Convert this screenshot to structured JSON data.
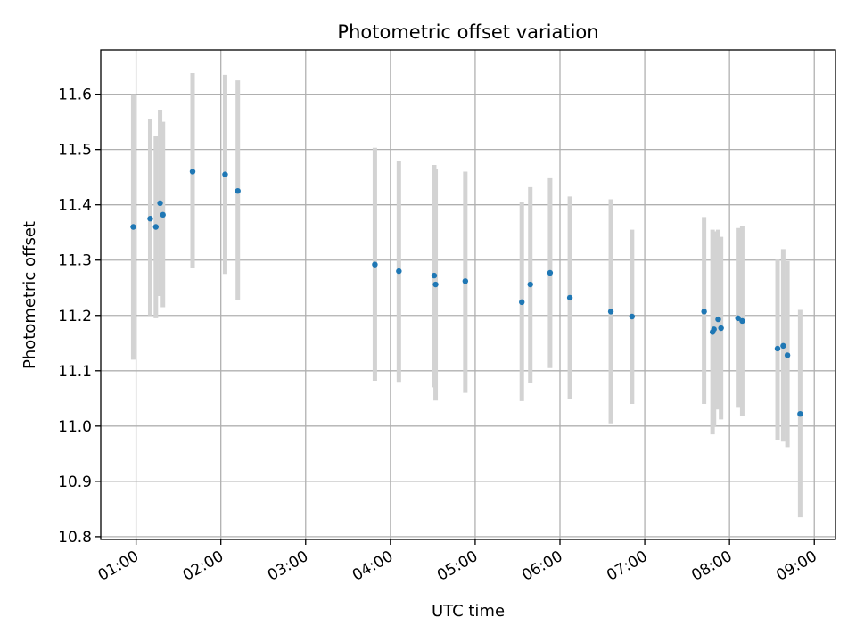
{
  "chart_data": {
    "type": "scatter",
    "title": "Photometric offset variation",
    "xlabel": "UTC time",
    "ylabel": "Photometric offset",
    "xlim": [
      "00:35",
      "09:15"
    ],
    "ylim": [
      10.795,
      11.68
    ],
    "grid": true,
    "x_ticks": [
      "01:00",
      "02:00",
      "03:00",
      "04:00",
      "05:00",
      "06:00",
      "07:00",
      "08:00",
      "09:00"
    ],
    "y_ticks": [
      "10.8",
      "10.9",
      "11.0",
      "11.1",
      "11.2",
      "11.3",
      "11.4",
      "11.5",
      "11.6"
    ],
    "point_color": "#1f77b4",
    "errorbar_color": "#d3d3d3",
    "points": [
      {
        "x": "00:58",
        "y": 11.36,
        "lo": 11.12,
        "hi": 11.6
      },
      {
        "x": "01:10",
        "y": 11.375,
        "lo": 11.2,
        "hi": 11.555
      },
      {
        "x": "01:14",
        "y": 11.36,
        "lo": 11.195,
        "hi": 11.525
      },
      {
        "x": "01:17",
        "y": 11.403,
        "lo": 11.235,
        "hi": 11.572
      },
      {
        "x": "01:19",
        "y": 11.382,
        "lo": 11.215,
        "hi": 11.55
      },
      {
        "x": "01:40",
        "y": 11.46,
        "lo": 11.285,
        "hi": 11.638
      },
      {
        "x": "02:03",
        "y": 11.455,
        "lo": 11.275,
        "hi": 11.635
      },
      {
        "x": "02:12",
        "y": 11.425,
        "lo": 11.228,
        "hi": 11.625
      },
      {
        "x": "03:49",
        "y": 11.292,
        "lo": 11.082,
        "hi": 11.503
      },
      {
        "x": "04:06",
        "y": 11.28,
        "lo": 11.08,
        "hi": 11.48
      },
      {
        "x": "04:31",
        "y": 11.272,
        "lo": 11.07,
        "hi": 11.472
      },
      {
        "x": "04:32",
        "y": 11.256,
        "lo": 11.046,
        "hi": 11.465
      },
      {
        "x": "04:53",
        "y": 11.262,
        "lo": 11.06,
        "hi": 11.46
      },
      {
        "x": "05:33",
        "y": 11.224,
        "lo": 11.045,
        "hi": 11.405
      },
      {
        "x": "05:39",
        "y": 11.256,
        "lo": 11.078,
        "hi": 11.432
      },
      {
        "x": "05:53",
        "y": 11.277,
        "lo": 11.105,
        "hi": 11.448
      },
      {
        "x": "06:07",
        "y": 11.232,
        "lo": 11.048,
        "hi": 11.415
      },
      {
        "x": "06:36",
        "y": 11.207,
        "lo": 11.005,
        "hi": 11.41
      },
      {
        "x": "06:51",
        "y": 11.198,
        "lo": 11.04,
        "hi": 11.355
      },
      {
        "x": "07:42",
        "y": 11.207,
        "lo": 11.04,
        "hi": 11.378
      },
      {
        "x": "07:48",
        "y": 11.17,
        "lo": 10.985,
        "hi": 11.355
      },
      {
        "x": "07:49",
        "y": 11.175,
        "lo": 11.0,
        "hi": 11.352
      },
      {
        "x": "07:52",
        "y": 11.193,
        "lo": 11.03,
        "hi": 11.355
      },
      {
        "x": "07:54",
        "y": 11.177,
        "lo": 11.012,
        "hi": 11.342
      },
      {
        "x": "08:06",
        "y": 11.195,
        "lo": 11.033,
        "hi": 11.358
      },
      {
        "x": "08:09",
        "y": 11.19,
        "lo": 11.018,
        "hi": 11.362
      },
      {
        "x": "08:34",
        "y": 11.14,
        "lo": 10.975,
        "hi": 11.302
      },
      {
        "x": "08:38",
        "y": 11.145,
        "lo": 10.972,
        "hi": 11.32
      },
      {
        "x": "08:41",
        "y": 11.128,
        "lo": 10.962,
        "hi": 11.298
      },
      {
        "x": "08:50",
        "y": 11.022,
        "lo": 10.835,
        "hi": 11.21
      }
    ]
  }
}
